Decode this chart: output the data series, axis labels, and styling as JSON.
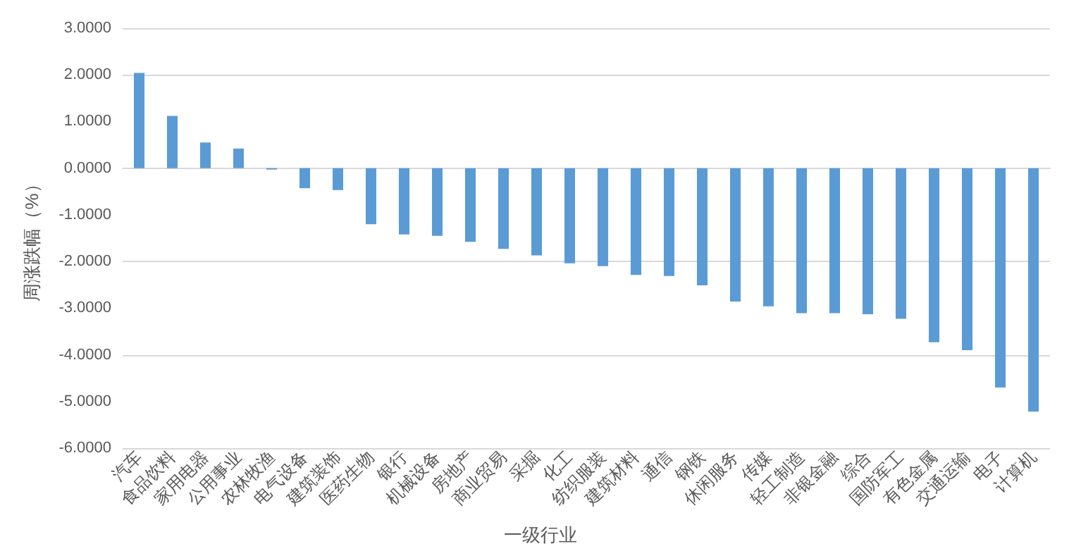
{
  "chart_data": {
    "type": "bar",
    "xlabel": "一级行业",
    "ylabel": "周涨跌幅（%）",
    "categories": [
      "汽车",
      "食品饮料",
      "家用电器",
      "公用事业",
      "农林牧渔",
      "电气设备",
      "建筑装饰",
      "医药生物",
      "银行",
      "机械设备",
      "房地产",
      "商业贸易",
      "采掘",
      "化工",
      "纺织服装",
      "建筑材料",
      "通信",
      "钢铁",
      "休闲服务",
      "传媒",
      "轻工制造",
      "非银金融",
      "综合",
      "国防军工",
      "有色金属",
      "交通运输",
      "电子",
      "计算机"
    ],
    "values": [
      2.04,
      1.12,
      0.55,
      0.42,
      -0.03,
      -0.43,
      -0.47,
      -1.2,
      -1.42,
      -1.45,
      -1.58,
      -1.73,
      -1.87,
      -2.04,
      -2.1,
      -2.29,
      -2.31,
      -2.51,
      -2.86,
      -2.96,
      -3.11,
      -3.11,
      -3.13,
      -3.23,
      -3.73,
      -3.9,
      -4.7,
      -5.22
    ],
    "color": "#5b9bd5",
    "ylim": [
      -6,
      3
    ],
    "yticks": [
      {
        "value": -6,
        "label": "-6.0000"
      },
      {
        "value": -5,
        "label": "-5.0000"
      },
      {
        "value": -4,
        "label": "-4.0000"
      },
      {
        "value": -3,
        "label": "-3.0000"
      },
      {
        "value": -2,
        "label": "-2.0000"
      },
      {
        "value": -1,
        "label": "-1.0000"
      },
      {
        "value": 0,
        "label": "0.0000"
      },
      {
        "value": 1,
        "label": "1.0000"
      },
      {
        "value": 2,
        "label": "2.0000"
      },
      {
        "value": 3,
        "label": "3.0000"
      }
    ],
    "grid": "y"
  }
}
